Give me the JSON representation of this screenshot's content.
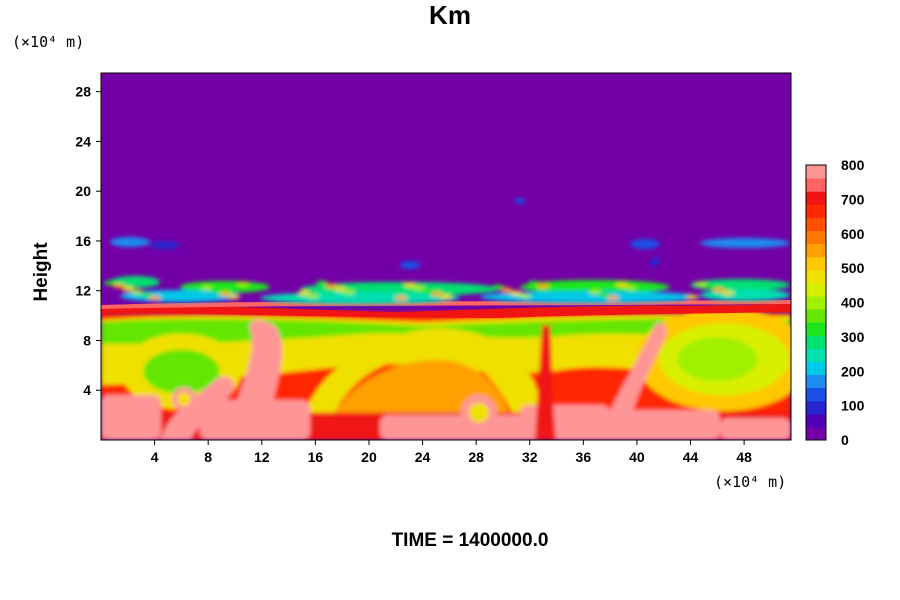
{
  "chart_data": {
    "type": "heatmap",
    "title": "Km",
    "ylabel": "Height",
    "x_unit": "(×10⁴ m)",
    "y_unit": "(×10⁴ m)",
    "footer": "TIME = 1400000.0",
    "xlim": [
      0,
      51.5
    ],
    "ylim": [
      0,
      29.5
    ],
    "x_ticks": [
      4,
      8,
      12,
      16,
      20,
      24,
      28,
      32,
      36,
      40,
      44,
      48
    ],
    "y_ticks": [
      4,
      8,
      12,
      16,
      20,
      24,
      28
    ],
    "colorbar": {
      "levels": [
        0,
        100,
        200,
        300,
        400,
        500,
        600,
        700,
        800
      ],
      "labels": [
        "0",
        "100",
        "200",
        "300",
        "400",
        "500",
        "600",
        "700",
        "800"
      ],
      "colors": [
        "#7300a6",
        "#4d00b4",
        "#2626d0",
        "#1a4fe8",
        "#1e8cf0",
        "#00c8e8",
        "#00e0b0",
        "#00e070",
        "#1ee61e",
        "#64e600",
        "#a0f000",
        "#d8f000",
        "#f0e000",
        "#ffc800",
        "#ffa000",
        "#ff7800",
        "#ff5000",
        "#ff2800",
        "#f01414",
        "#ff6464",
        "#ff9696"
      ]
    },
    "description_fields": {
      "background_value": 0,
      "turbulent_layer_height": [
        10,
        13
      ],
      "scattered_patches_height": [
        12,
        16
      ],
      "lower_layer_max_value": 800
    }
  }
}
